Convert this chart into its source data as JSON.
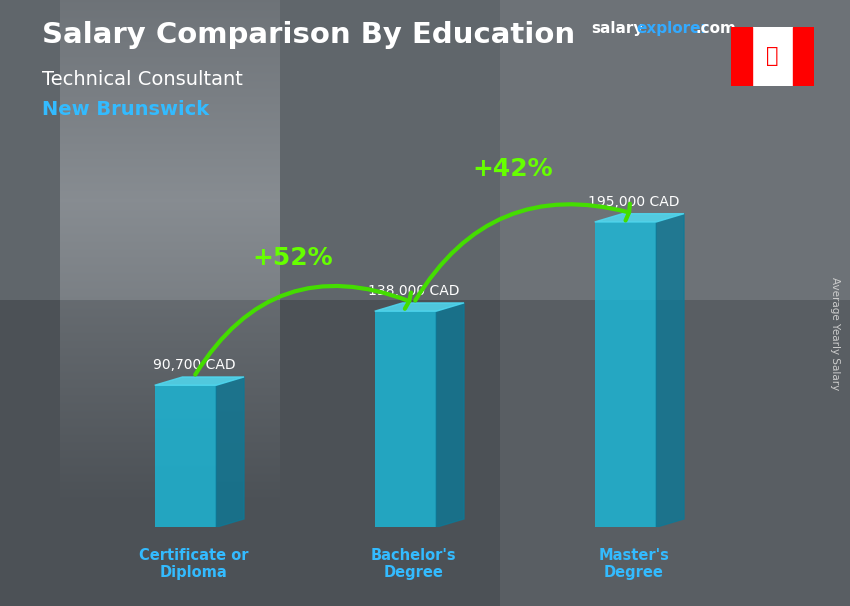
{
  "title": "Salary Comparison By Education",
  "subtitle_job": "Technical Consultant",
  "subtitle_location": "New Brunswick",
  "categories": [
    "Certificate or\nDiploma",
    "Bachelor's\nDegree",
    "Master's\nDegree"
  ],
  "values": [
    90700,
    138000,
    195000
  ],
  "value_labels": [
    "90,700 CAD",
    "138,000 CAD",
    "195,000 CAD"
  ],
  "pct_labels": [
    "+52%",
    "+42%"
  ],
  "bar_front_color": "#1ab8d8",
  "bar_top_color": "#50d8f0",
  "bar_side_color": "#0a7a99",
  "bar_alpha": 0.82,
  "bg_color": "#5a6068",
  "title_color": "#ffffff",
  "subtitle_job_color": "#ffffff",
  "subtitle_loc_color": "#33bbff",
  "value_label_color": "#ffffff",
  "pct_color": "#66ff00",
  "arrow_color": "#44dd00",
  "cat_label_color": "#33bbff",
  "website_salary_color": "#ffffff",
  "website_explorer_color": "#33aaff",
  "right_label": "Average Yearly Salary",
  "right_label_color": "#cccccc",
  "bar_width": 0.28,
  "ylim_max": 240000,
  "bar_positions": [
    1.0,
    2.0,
    3.0
  ],
  "fig_width": 8.5,
  "fig_height": 6.06,
  "dpi": 100
}
